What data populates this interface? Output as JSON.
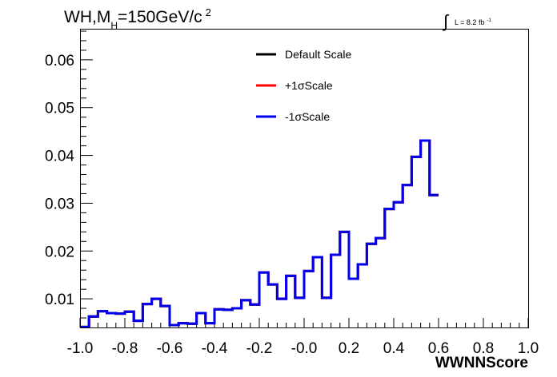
{
  "chart_data": {
    "type": "line",
    "title": {
      "prefix": "WH,M",
      "sub": "H",
      "main": "=150GeV/c",
      "sup": "2"
    },
    "luminosity": {
      "integral": "∫",
      "text": "L = 8.2 fb",
      "sup": "-1"
    },
    "xlabel": "WWNNScore",
    "ylabel": "",
    "xlim": [
      -1.0,
      1.0
    ],
    "ylim": [
      0.004,
      0.0665
    ],
    "x_ticks": [
      "-1.0",
      "-0.8",
      "-0.6",
      "-0.4",
      "-0.2",
      "-0.0",
      "0.2",
      "0.4",
      "0.6",
      "0.8",
      "1.0"
    ],
    "y_ticks": [
      "0.01",
      "0.02",
      "0.03",
      "0.04",
      "0.05",
      "0.06"
    ],
    "bin_edges_start": -1.0,
    "bin_width": 0.04,
    "legend_position": "top-center",
    "series": [
      {
        "name": "Default Scale",
        "color": "#000000",
        "values": [
          0.0041,
          0.0063,
          0.0074,
          0.007,
          0.0069,
          0.0073,
          0.0054,
          0.0089,
          0.01,
          0.0085,
          0.0045,
          0.0049,
          0.0048,
          0.007,
          0.0049,
          0.0078,
          0.0077,
          0.008,
          0.0097,
          0.0088,
          0.0155,
          0.013,
          0.01,
          0.0148,
          0.0102,
          0.0158,
          0.0187,
          0.0102,
          0.0192,
          0.024,
          0.0142,
          0.0172,
          0.0215,
          0.0227,
          0.0288,
          0.0302,
          0.0338,
          0.0397,
          0.0431,
          0.0317
        ]
      },
      {
        "name": "+1σScale",
        "color": "#ff0000",
        "values": [
          0.0041,
          0.0063,
          0.0074,
          0.007,
          0.0069,
          0.0073,
          0.0054,
          0.0089,
          0.01,
          0.0085,
          0.0045,
          0.0049,
          0.0048,
          0.007,
          0.0049,
          0.0078,
          0.0077,
          0.008,
          0.0097,
          0.0088,
          0.0155,
          0.013,
          0.01,
          0.0148,
          0.0102,
          0.0158,
          0.0187,
          0.0102,
          0.0192,
          0.024,
          0.0142,
          0.0172,
          0.0215,
          0.0227,
          0.0288,
          0.0302,
          0.0338,
          0.0397,
          0.0431,
          0.0317
        ]
      },
      {
        "name": "-1σScale",
        "color": "#0000ee",
        "values": [
          0.0041,
          0.0063,
          0.0074,
          0.007,
          0.0069,
          0.0073,
          0.0054,
          0.0089,
          0.01,
          0.0085,
          0.0045,
          0.0049,
          0.0048,
          0.007,
          0.0049,
          0.0078,
          0.0077,
          0.008,
          0.0097,
          0.0088,
          0.0155,
          0.013,
          0.01,
          0.0148,
          0.0102,
          0.0158,
          0.0187,
          0.0102,
          0.0192,
          0.024,
          0.0142,
          0.0172,
          0.0215,
          0.0227,
          0.0288,
          0.0302,
          0.0338,
          0.0397,
          0.0431,
          0.0317
        ]
      }
    ]
  }
}
